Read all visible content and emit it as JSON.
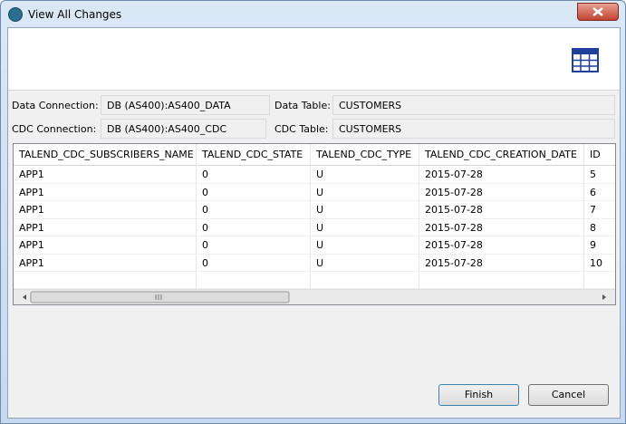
{
  "window": {
    "title": "View All Changes"
  },
  "form": {
    "data_connection_label": "Data Connection:",
    "data_connection": "DB (AS400):AS400_DATA",
    "data_table_label": "Data Table:",
    "data_table": "CUSTOMERS",
    "cdc_connection_label": "CDC Connection:",
    "cdc_connection": "DB (AS400):AS400_CDC",
    "cdc_table_label": "CDC Table:",
    "cdc_table": "CUSTOMERS"
  },
  "table": {
    "columns": [
      "TALEND_CDC_SUBSCRIBERS_NAME",
      "TALEND_CDC_STATE",
      "TALEND_CDC_TYPE",
      "TALEND_CDC_CREATION_DATE",
      "ID"
    ],
    "rows": [
      [
        "APP1",
        "0",
        "U",
        "2015-07-28",
        "5"
      ],
      [
        "APP1",
        "0",
        "U",
        "2015-07-28",
        "6"
      ],
      [
        "APP1",
        "0",
        "U",
        "2015-07-28",
        "7"
      ],
      [
        "APP1",
        "0",
        "U",
        "2015-07-28",
        "8"
      ],
      [
        "APP1",
        "0",
        "U",
        "2015-07-28",
        "9"
      ],
      [
        "APP1",
        "0",
        "U",
        "2015-07-28",
        "10"
      ]
    ]
  },
  "buttons": {
    "finish": "Finish",
    "cancel": "Cancel"
  }
}
